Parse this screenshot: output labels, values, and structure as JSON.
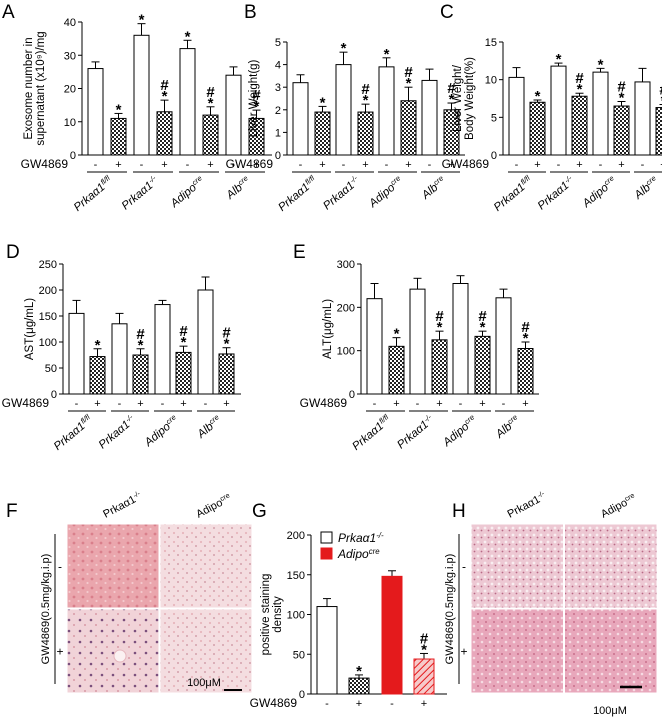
{
  "patterns": {
    "checker": "checkerboard",
    "hatch": "diagonal-hatch"
  },
  "colors": {
    "open": "#ffffff",
    "dark": "#222222",
    "red": "#e41a1c",
    "pink": "#f0b8b8",
    "tissue": "#e6a7b2",
    "tissueLight": "#f3d6da"
  },
  "groups": [
    {
      "label": "Prkaα1",
      "sup": "fl/fl"
    },
    {
      "label": "Prkaα1",
      "sup": "-/-"
    },
    {
      "label": "Adipo",
      "sup": "cre"
    },
    {
      "label": "Alb",
      "sup": "cre"
    }
  ],
  "treatment_row_label": "GW4869",
  "treatment_signs": [
    "-",
    "+"
  ],
  "chart_data": [
    {
      "panel": "A",
      "type": "bar",
      "ylabel_lines": [
        "Exosome number in",
        "supernatant (x10⁹)/mg"
      ],
      "ylim": [
        0,
        40
      ],
      "yticks": [
        "0",
        "10",
        "20",
        "30",
        "40"
      ],
      "values": [
        26,
        11,
        36,
        13,
        32,
        12,
        24,
        11
      ],
      "errors": [
        2,
        1.5,
        3.5,
        3.5,
        2.5,
        2.5,
        2.5,
        2.5
      ],
      "marks": [
        "",
        "*",
        "*",
        "#*",
        "*",
        "#*",
        "",
        "#*"
      ]
    },
    {
      "panel": "B",
      "type": "bar",
      "ylabel_lines": [
        "Liver Weight(g)"
      ],
      "ylim": [
        0,
        5
      ],
      "yticks": [
        "0",
        "1",
        "2",
        "3",
        "4",
        "5"
      ],
      "values": [
        3.2,
        1.9,
        4.0,
        1.9,
        3.9,
        2.4,
        3.3,
        2.0
      ],
      "errors": [
        0.35,
        0.25,
        0.55,
        0.35,
        0.4,
        0.6,
        0.5,
        0.3
      ],
      "marks": [
        "",
        "*",
        "*",
        "#*",
        "*",
        "#*",
        "",
        "#*"
      ]
    },
    {
      "panel": "C",
      "type": "bar",
      "ylabel_lines": [
        "Liver Weight/",
        "Body Weight(%)"
      ],
      "ylim": [
        0,
        15
      ],
      "yticks": [
        "0",
        "5",
        "10",
        "15"
      ],
      "values": [
        10.3,
        7.0,
        11.8,
        7.8,
        11.0,
        6.5,
        9.7,
        6.3
      ],
      "errors": [
        1.3,
        0.3,
        0.4,
        0.4,
        0.5,
        0.6,
        1.8,
        0.4
      ],
      "marks": [
        "",
        "*",
        "*",
        "#*",
        "*",
        "#*",
        "",
        "#*"
      ]
    },
    {
      "panel": "D",
      "type": "bar",
      "ylabel_lines": [
        "AST(μg/mL)"
      ],
      "ylim": [
        0,
        250
      ],
      "yticks": [
        "0",
        "50",
        "100",
        "150",
        "200",
        "250"
      ],
      "values": [
        155,
        72,
        135,
        75,
        172,
        80,
        200,
        77
      ],
      "errors": [
        25,
        15,
        20,
        12,
        8,
        12,
        25,
        12
      ],
      "marks": [
        "",
        "*",
        "",
        "#*",
        "",
        "#*",
        "",
        "#*"
      ]
    },
    {
      "panel": "E",
      "type": "bar",
      "ylabel_lines": [
        "ALT(μg/mL)"
      ],
      "ylim": [
        0,
        300
      ],
      "yticks": [
        "0",
        "100",
        "200",
        "300"
      ],
      "values": [
        220,
        110,
        242,
        125,
        255,
        133,
        222,
        105
      ],
      "errors": [
        35,
        20,
        25,
        20,
        18,
        12,
        20,
        15
      ],
      "marks": [
        "",
        "*",
        "",
        "#*",
        "",
        "#*",
        "",
        "#*"
      ]
    },
    {
      "panel": "G",
      "type": "bar",
      "ylabel_lines": [
        "positive staining",
        "density"
      ],
      "ylim": [
        0,
        200
      ],
      "yticks": [
        "0",
        "50",
        "100",
        "150",
        "200"
      ],
      "legend": [
        {
          "label": "Prkaα1",
          "sup": "-/-"
        },
        {
          "label": "Adipo",
          "sup": "cre"
        }
      ],
      "values": [
        110,
        20,
        148,
        44
      ],
      "errors": [
        10,
        4,
        7,
        7
      ],
      "marks": [
        "",
        "*",
        "",
        "#*"
      ],
      "signs": [
        "-",
        "+",
        "-",
        "+"
      ]
    }
  ],
  "images": {
    "F": {
      "cols": [
        {
          "label": "Prkaα1",
          "sup": "-/-"
        },
        {
          "label": "Adipo",
          "sup": "cre"
        }
      ],
      "rows": [
        "-",
        "+"
      ],
      "side_label": "GW4869(0.5mg/kg.i.p)",
      "scale": "100μM"
    },
    "H": {
      "cols": [
        {
          "label": "Prkaα1",
          "sup": "-/-"
        },
        {
          "label": "Adipo",
          "sup": "cre"
        }
      ],
      "rows": [
        "-",
        "+"
      ],
      "side_label": "GW4869(0.5mg/kg.i.p)",
      "scale": "100μM"
    }
  },
  "panel_letters": [
    "A",
    "B",
    "C",
    "D",
    "E",
    "F",
    "G",
    "H"
  ]
}
